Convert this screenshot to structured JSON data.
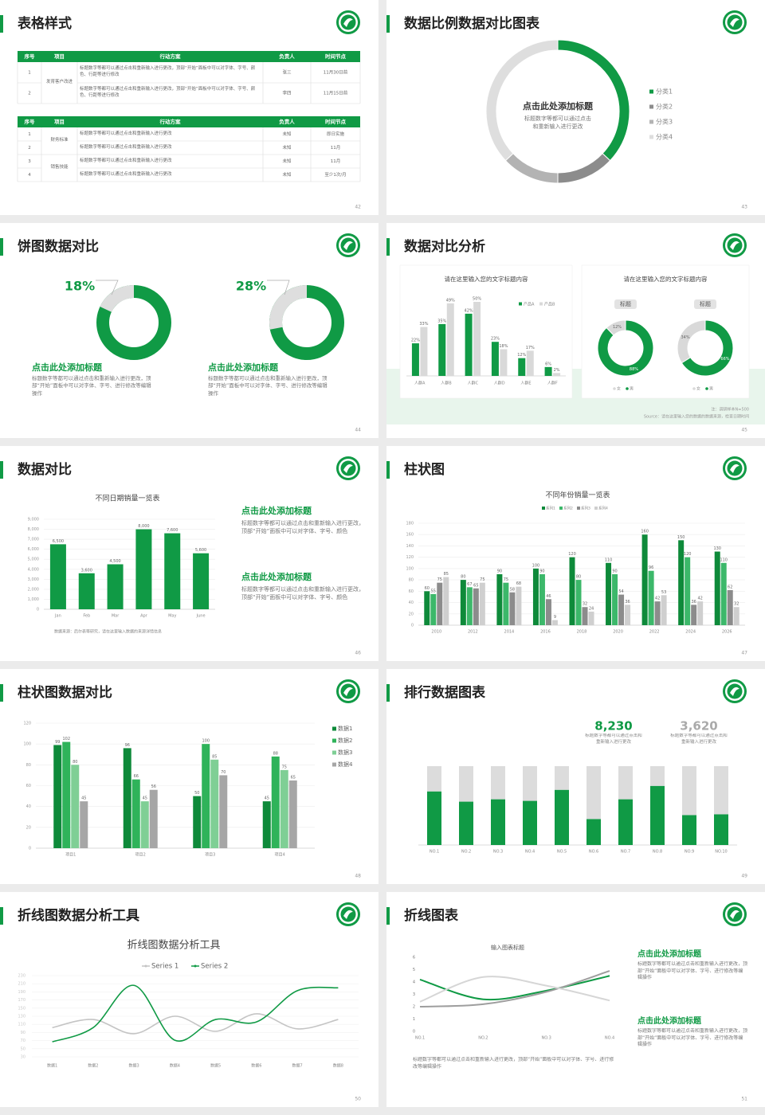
{
  "slides": [
    {
      "title": "表格样式",
      "page": 42,
      "tables": [
        {
          "headers": [
            "序号",
            "项目",
            "行动方案",
            "负责人",
            "时间节点"
          ],
          "groups": [
            {
              "project": "发育客户改进",
              "rows": [
                [
                  "1",
                  "标题数字等都可以通过点击和重新输入进行更改，顶部“开始”面板中可以对字体、字号、颜色、行距等进行修改",
                  "张三",
                  "11月30日前"
                ],
                [
                  "2",
                  "标题数字等都可以通过点击和重新输入进行更改，顶部“开始”面板中可以对字体、字号、颜色、行距等进行修改",
                  "李四",
                  "11月15日前"
                ]
              ]
            }
          ]
        },
        {
          "headers": [
            "序号",
            "项目",
            "行动方案",
            "负责人",
            "时间节点"
          ],
          "groups": [
            {
              "project": "财务标准",
              "rows": [
                [
                  "1",
                  "标题数字等都可以通过点击和重新输入进行更改",
                  "未知",
                  "即日实施"
                ],
                [
                  "2",
                  "标题数字等都可以通过点击和重新输入进行更改",
                  "未知",
                  "11月"
                ]
              ]
            },
            {
              "project": "销售技能",
              "rows": [
                [
                  "3",
                  "标题数字等都可以通过点击和重新输入进行更改",
                  "未知",
                  "11月"
                ],
                [
                  "4",
                  "标题数字等都可以通过点击和重新输入进行更改",
                  "未知",
                  "至少1次/月"
                ]
              ]
            }
          ]
        }
      ]
    },
    {
      "title": "数据比例数据对比图表",
      "page": 43,
      "chart": {
        "type": "donut",
        "categories": [
          "分类1",
          "分类2",
          "分类3",
          "分类4"
        ],
        "values": [
          37,
          13,
          13,
          37
        ],
        "colors": [
          "#109a45",
          "#8c8c8c",
          "#b3b3b3",
          "#dedede"
        ],
        "center_title": "点击此处添加标题",
        "center_text": "标题数字等都可以通过点击和重新输入进行更改"
      }
    },
    {
      "title": "饼图数据对比",
      "page": 44,
      "items": [
        {
          "chart": {
            "type": "donut_share",
            "values": [
              18
            ],
            "value_labels": [
              "18%"
            ],
            "color": "#dedede",
            "base_color": "#109a45"
          },
          "heading": "点击此处添加标题",
          "text": "标题数字等都可以通过点击和重新输入进行更改，顶部“开始”面板中可以对字体、字号、进行修改等编辑操作"
        },
        {
          "chart": {
            "type": "donut_share",
            "values": [
              28
            ],
            "value_labels": [
              "28%"
            ],
            "color": "#dedede",
            "base_color": "#109a45"
          },
          "heading": "点击此处添加标题",
          "text": "标题数字等都可以通过点击和重新输入进行更改，顶部“开始”面板中可以对字体、字号、进行修改等编辑操作"
        }
      ]
    },
    {
      "title": "数据对比分析",
      "page": 45,
      "bar_chart": {
        "type": "bar",
        "title": "请在这里输入您的文字标题内容",
        "categories": [
          "人群A",
          "人群B",
          "人群C",
          "人群D",
          "人群E",
          "人群F"
        ],
        "data_labels": true,
        "series": [
          {
            "name": "产品A",
            "color": "#109a45",
            "values": [
              22,
              35,
              42,
              23,
              12,
              6
            ],
            "value_labels": [
              "22%",
              "35%",
              "42%",
              "23%",
              "12%",
              "6%"
            ]
          },
          {
            "name": "产品B",
            "color": "#d9d9d9",
            "values": [
              33,
              49,
              50,
              18,
              17,
              2
            ],
            "value_labels": [
              "33%",
              "49%",
              "50%",
              "18%",
              "17%",
              "2%"
            ]
          }
        ]
      },
      "donut_chart": {
        "type": "donut",
        "title": "请在这里输入您的文字标题内容",
        "categories": [
          "女",
          "男"
        ],
        "colors": [
          "#d9d9d9",
          "#109a45"
        ],
        "groups": [
          {
            "label": "标题",
            "values": [
              12,
              88
            ],
            "value_labels": [
              "12%",
              "88%"
            ]
          },
          {
            "label": "标题",
            "values": [
              34,
              66
            ],
            "value_labels": [
              "34%",
              "66%"
            ]
          }
        ]
      },
      "notes": [
        "注：调研样本N=500",
        "Source：请在这里输入您的数据的数据来源，检查日期时间"
      ]
    },
    {
      "title": "数据对比",
      "page": 46,
      "chart": {
        "type": "bar",
        "title": "不同日期销量一览表",
        "categories": [
          "Jan",
          "Feb",
          "Mar",
          "Apr",
          "May",
          "June"
        ],
        "color": "#109a45",
        "data_labels": true,
        "values": [
          6500,
          3600,
          4500,
          8000,
          7600,
          5600
        ],
        "value_labels": [
          "6,500",
          "3,600",
          "4,500",
          "8,000",
          "7,600",
          "5,600"
        ],
        "ylim": [
          0,
          9000
        ],
        "yticks": [
          0,
          {
            "value": 1000,
            "label": "1,000"
          },
          {
            "value": 2000,
            "label": "2,000"
          },
          {
            "value": 3000,
            "label": "3,000"
          },
          {
            "value": 4000,
            "label": "4,000"
          },
          {
            "value": 5000,
            "label": "5,000"
          },
          {
            "value": 6000,
            "label": "6,000"
          },
          {
            "value": 7000,
            "label": "7,000"
          },
          {
            "value": 8000,
            "label": "8,000"
          },
          {
            "value": 9000,
            "label": "9,000"
          }
        ],
        "grid": true
      },
      "source": "数据来源：后尔表等研究，请在这里输入数据的来源详情信息",
      "blocks": [
        {
          "heading": "点击此处添加标题",
          "text": "标题数字等都可以通过点击和重新输入进行更改，顶部“开始”面板中可以对字体、字号、颜色"
        },
        {
          "heading": "点击此处添加标题",
          "text": "标题数字等都可以通过点击和重新输入进行更改，顶部“开始”面板中可以对字体、字号、颜色"
        }
      ]
    },
    {
      "title": "柱状图",
      "page": 47,
      "chart": {
        "type": "bar",
        "title": "不同年份销量一览表",
        "categories": [
          "2010",
          "2012",
          "2014",
          "2016",
          "2018",
          "2020",
          "2022",
          "2024",
          "2026"
        ],
        "data_labels": true,
        "series": [
          {
            "name": "系列1",
            "color": "#0e8a3a",
            "values": [
              60,
              80,
              90,
              100,
              120,
              110,
              160,
              150,
              130
            ]
          },
          {
            "name": "系列2",
            "color": "#3cb86a",
            "values": [
              55,
              67,
              75,
              90,
              80,
              90,
              96,
              120,
              110
            ]
          },
          {
            "name": "系列3",
            "color": "#8c8c8c",
            "values": [
              75,
              65,
              58,
              46,
              32,
              54,
              42,
              36,
              62
            ]
          },
          {
            "name": "系列4",
            "color": "#cfcfcf",
            "values": [
              85,
              75,
              68,
              9,
              24,
              36,
              53,
              42,
              32
            ]
          }
        ],
        "ylim": [
          0,
          180
        ],
        "yticks": [
          0,
          20,
          40,
          60,
          80,
          100,
          120,
          140,
          160,
          180
        ],
        "grid": true
      }
    },
    {
      "title": "柱状图数据对比",
      "page": 48,
      "chart": {
        "type": "bar",
        "categories": [
          "项目1",
          "项目2",
          "项目3",
          "项目4"
        ],
        "data_labels": true,
        "series": [
          {
            "name": "数据1",
            "color": "#0e8a3a",
            "values": [
              99,
              96,
              50,
              45
            ]
          },
          {
            "name": "数据2",
            "color": "#2fb35a",
            "values": [
              102,
              66,
              100,
              88
            ]
          },
          {
            "name": "数据3",
            "color": "#7fcf95",
            "values": [
              80,
              45,
              85,
              75
            ]
          },
          {
            "name": "数据4",
            "color": "#a6a6a6",
            "values": [
              45,
              56,
              70,
              65
            ]
          }
        ],
        "ylim": [
          0,
          120
        ],
        "yticks": [
          0,
          20,
          40,
          60,
          80,
          100,
          120
        ],
        "grid": true
      }
    },
    {
      "title": "排行数据图表",
      "page": 49,
      "stats": [
        {
          "value": "8,230",
          "text": "标题数字等都可以通过点击和重新输入进行更改"
        },
        {
          "value": "3,620",
          "text": "标题数字等都可以通过点击和重新输入进行更改"
        }
      ],
      "chart": {
        "type": "stacked_bar",
        "categories": [
          "NO.1",
          "NO.2",
          "NO.3",
          "NO.4",
          "NO.5",
          "NO.6",
          "NO.7",
          "NO.8",
          "NO.9",
          "NO.10"
        ],
        "series": [
          {
            "color": "#109a45",
            "values": [
              68,
              55,
              58,
              56,
              70,
              33,
              58,
              75,
              38,
              39
            ]
          },
          {
            "color": "#dcdcdc",
            "values": [
              32,
              45,
              42,
              44,
              30,
              67,
              42,
              25,
              62,
              61
            ]
          }
        ]
      }
    },
    {
      "title": "折线图数据分析工具",
      "page": 50,
      "chart": {
        "type": "line",
        "title": "折线图数据分析工具",
        "categories": [
          "数据1",
          "数据2",
          "数据3",
          "数据4",
          "数据5",
          "数据6",
          "数据7",
          "数据8"
        ],
        "series": [
          {
            "name": "Series 1",
            "color": "#c4c4c4",
            "values": [
              102,
              122,
              87,
              130,
              93,
              136,
              99,
              122
            ]
          },
          {
            "name": "Series 2",
            "color": "#109a45",
            "values": [
              67,
              102,
              206,
              71,
              122,
              116,
              193,
              200
            ]
          }
        ],
        "ylim": [
          30,
          230
        ],
        "yticks": [
          30,
          50,
          70,
          90,
          110,
          130,
          150,
          170,
          190,
          210,
          230
        ]
      }
    },
    {
      "title": "折线图表",
      "page": 51,
      "chart": {
        "type": "line",
        "title": "输入图表标题",
        "categories": [
          "NO.1",
          "NO.2",
          "NO.3",
          "NO.4"
        ],
        "series": [
          {
            "color": "#109a45",
            "values": [
              4.2,
              2.6,
              3.3,
              4.5
            ]
          },
          {
            "color": "#9e9e9e",
            "values": [
              2,
              2.2,
              3.2,
              4.9
            ]
          },
          {
            "color": "#d6d6d6",
            "values": [
              2.4,
              4.4,
              3.7,
              2.5
            ]
          }
        ],
        "ylim": [
          0,
          6
        ],
        "yticks": [
          0,
          1,
          2,
          3,
          4,
          5,
          6
        ]
      },
      "text": "标题数字等都可以通过点击和重新输入进行更改，顶部“开始”面板中可以对字体、字号、进行修改等编辑操作",
      "blocks": [
        {
          "heading": "点击此处添加标题",
          "text": "标题数字等都可以通过点击和重新输入进行更改，顶部“开始”面板中可以对字体、字号、进行修改等编辑操作"
        },
        {
          "heading": "点击此处添加标题",
          "text": "标题数字等都可以通过点击和重新输入进行更改，顶部“开始”面板中可以对字体、字号、进行修改等编辑操作"
        }
      ]
    }
  ]
}
